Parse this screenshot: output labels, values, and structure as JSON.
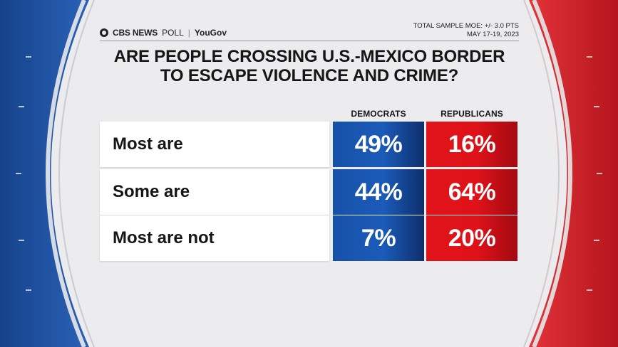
{
  "header": {
    "brand": "CBS NEWS",
    "poll_label": "POLL",
    "partner": "YouGov",
    "moe": "TOTAL SAMPLE MOE: +/- 3.0 PTS",
    "dates": "MAY 17-19, 2023"
  },
  "colors": {
    "democrats": "#1b5bb9",
    "republicans": "#e1141a",
    "frame_blue": "#1d4f9c",
    "frame_red": "#d42027"
  },
  "chart_data": {
    "type": "table",
    "title": "ARE PEOPLE CROSSING U.S.-MEXICO BORDER TO ESCAPE VIOLENCE AND CRIME?",
    "title_lines": [
      "ARE PEOPLE CROSSING U.S.-MEXICO BORDER",
      "TO ESCAPE VIOLENCE AND CRIME?"
    ],
    "categories": [
      "Most are",
      "Some are",
      "Most are not"
    ],
    "series": [
      {
        "name": "DEMOCRATS",
        "values": [
          49,
          44,
          7
        ],
        "labels": [
          "49%",
          "44%",
          "7%"
        ]
      },
      {
        "name": "REPUBLICANS",
        "values": [
          16,
          64,
          20
        ],
        "labels": [
          "16%",
          "64%",
          "20%"
        ]
      }
    ],
    "unit": "%"
  }
}
